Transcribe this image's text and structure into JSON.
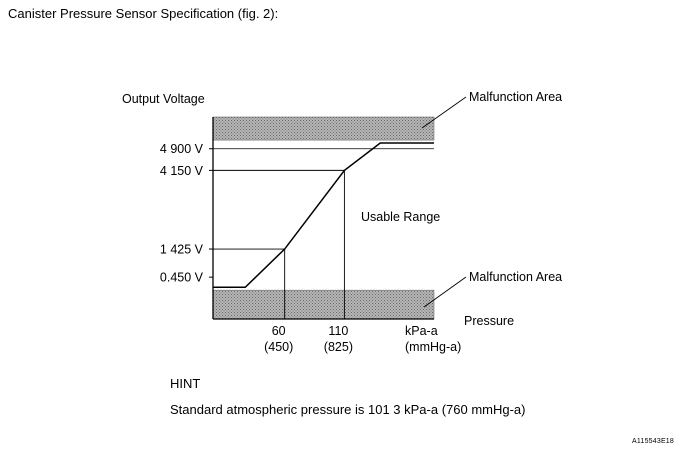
{
  "page": {
    "heading": "Canister Pressure Sensor Specification (fig. 2):",
    "hint_title": "HINT",
    "hint_text": "Standard atmospheric pressure is 101 3 kPa-a (760 mmHg-a)",
    "ref_code": "A115543E18"
  },
  "colors": {
    "band_fill": "#9c9c9c",
    "line": "#000000"
  },
  "chart_data": {
    "type": "line",
    "ylabel": "Output Voltage",
    "xlabel": "Pressure",
    "x_unit": [
      "kPa-a",
      "(mmHg-a)"
    ],
    "y_ticks": [
      {
        "value": 4.9,
        "label": "4 900 V"
      },
      {
        "value": 4.15,
        "label": "4 150 V"
      },
      {
        "value": 1.425,
        "label": "1 425 V"
      },
      {
        "value": 0.45,
        "label": "0.450 V"
      }
    ],
    "x_ticks": [
      {
        "value": 60,
        "label": "60",
        "sublabel": "(450)"
      },
      {
        "value": 110,
        "label": "110",
        "sublabel": "(825)"
      }
    ],
    "series": [
      {
        "x": [
          0,
          27,
          60,
          110,
          140,
          185
        ],
        "y": [
          0.1,
          0.1,
          1.425,
          4.15,
          5.1,
          5.1
        ]
      }
    ],
    "reference_points": [
      {
        "x": 60,
        "y": 1.425
      },
      {
        "x": 110,
        "y": 4.15
      }
    ],
    "malfunction_bands": [
      {
        "from": 5.2,
        "to": 6.0,
        "label": "Malfunction Area"
      },
      {
        "from": -1.0,
        "to": 0.0,
        "label": "Malfunction Area"
      }
    ],
    "usable_range_label": "Usable Range",
    "xlim": [
      0,
      185
    ],
    "ylim": [
      -1.0,
      6.0
    ]
  }
}
